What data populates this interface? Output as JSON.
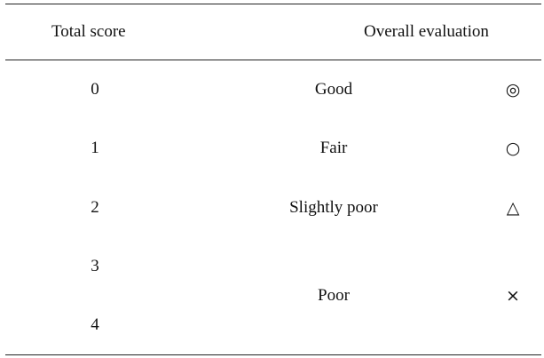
{
  "table": {
    "headers": {
      "total_score": "Total score",
      "overall_evaluation": "Overall evaluation"
    },
    "scores": [
      "0",
      "1",
      "2",
      "3",
      "4"
    ],
    "evaluations": [
      {
        "label": "Good",
        "symbol": "◎",
        "symbol_name": "double-circle-icon"
      },
      {
        "label": "Fair",
        "symbol": "○",
        "symbol_name": "circle-icon"
      },
      {
        "label": "Slightly poor",
        "symbol": "△",
        "symbol_name": "triangle-icon"
      },
      {
        "label": "Poor",
        "symbol": "×",
        "symbol_name": "cross-icon"
      }
    ]
  }
}
